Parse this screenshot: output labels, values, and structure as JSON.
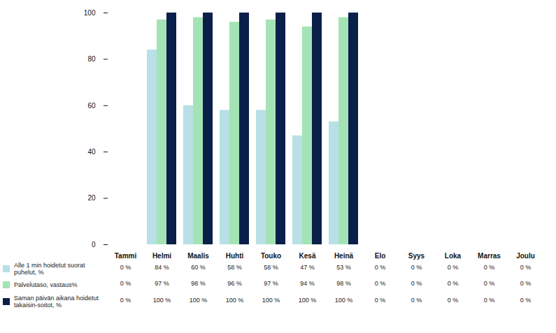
{
  "chart_data": {
    "type": "bar",
    "categories": [
      "Tammi",
      "Helmi",
      "Maalis",
      "Huhti",
      "Touko",
      "Kesä",
      "Heinä",
      "Elo",
      "Syys",
      "Loka",
      "Marras",
      "Joulu"
    ],
    "ylim": [
      0,
      100
    ],
    "yticks": [
      0,
      20,
      40,
      60,
      80,
      100
    ],
    "grid": false,
    "data_labels": true,
    "series": [
      {
        "name": "Alle 1 min hoidetut suorat puhelut, %",
        "color": "#b8e0e6",
        "values": [
          0,
          84,
          60,
          58,
          58,
          47,
          53,
          0,
          0,
          0,
          0,
          0
        ],
        "value_labels": [
          "0 %",
          "84 %",
          "60 %",
          "58 %",
          "58 %",
          "47 %",
          "53 %",
          "0 %",
          "0 %",
          "0 %",
          "0 %",
          "0 %"
        ]
      },
      {
        "name": "Palvelutaso, vastaus%",
        "color": "#a4e3b5",
        "values": [
          0,
          97,
          98,
          96,
          97,
          94,
          98,
          0,
          0,
          0,
          0,
          0
        ],
        "value_labels": [
          "0 %",
          "97 %",
          "98 %",
          "96 %",
          "97 %",
          "94 %",
          "98 %",
          "0 %",
          "0 %",
          "0 %",
          "0 %",
          "0 %"
        ]
      },
      {
        "name": "Saman päivän aikana hoidetut takaisin-soitot, %",
        "color": "#0b1f4b",
        "values": [
          0,
          100,
          100,
          100,
          100,
          100,
          100,
          0,
          0,
          0,
          0,
          0
        ],
        "value_labels": [
          "0 %",
          "100 %",
          "100 %",
          "100 %",
          "100 %",
          "100 %",
          "100 %",
          "0 %",
          "0 %",
          "0 %",
          "0 %",
          "0 %"
        ]
      }
    ]
  }
}
